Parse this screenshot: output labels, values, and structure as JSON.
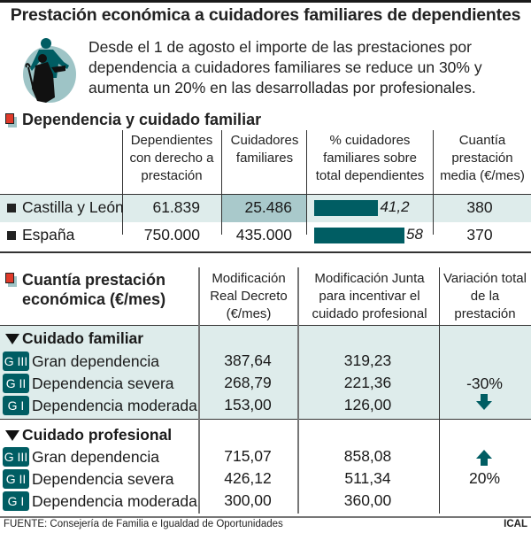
{
  "title": "Prestación económica a cuidadores familiares de dependientes",
  "intro": "Desde el 1 de agosto el importe de las prestaciones por dependencia a cuidadores familiares se reduce un 30% y aumenta un 20% en las desarrolladas por profesionales.",
  "icon": "caregiver-wheelchair-icon",
  "colors": {
    "accent": "#005d63",
    "band": "#deeceb",
    "highlight": "#a9c9cb",
    "marker": "#e03a2a"
  },
  "section1": {
    "heading": "Dependencia y cuidado familiar",
    "columns": [
      "Dependientes con derecho a prestación",
      "Cuidadores familiares",
      "% cuidadores familiares sobre total dependientes",
      "Cuantía prestación media (€/mes)"
    ],
    "rows": [
      {
        "name": "Castilla y León",
        "dependientes": "61.839",
        "cuidadores": "25.486",
        "pct_label": "41,2",
        "cuantia": "380"
      },
      {
        "name": "España",
        "dependientes": "750.000",
        "cuidadores": "435.000",
        "pct_label": "58",
        "cuantia": "370"
      }
    ]
  },
  "section2": {
    "heading_line1": "Cuantía prestación",
    "heading_line2": "económica (€/mes)",
    "columns": [
      "Modificación Real Decreto (€/mes)",
      "Modificación Junta para incentivar el cuidado profesional",
      "Variación total de la prestación"
    ],
    "groups": [
      {
        "name": "Cuidado familiar",
        "variation": "-30%",
        "direction": "down",
        "items": [
          {
            "badge": "G III",
            "label": "Gran dependencia",
            "real_decreto": "387,64",
            "junta": "319,23"
          },
          {
            "badge": "G II",
            "label": "Dependencia severa",
            "real_decreto": "268,79",
            "junta": "221,36"
          },
          {
            "badge": "G I",
            "label": "Dependencia moderada",
            "real_decreto": "153,00",
            "junta": "126,00"
          }
        ]
      },
      {
        "name": "Cuidado profesional",
        "variation": "20%",
        "direction": "up",
        "items": [
          {
            "badge": "G III",
            "label": "Gran dependencia",
            "real_decreto": "715,07",
            "junta": "858,08"
          },
          {
            "badge": "G II",
            "label": "Dependencia severa",
            "real_decreto": "426,12",
            "junta": "511,34"
          },
          {
            "badge": "G I",
            "label": "Dependencia moderada",
            "real_decreto": "300,00",
            "junta": "360,00"
          }
        ]
      }
    ]
  },
  "footer": "FUENTE: Consejería de Familia e Igualdad de Oportunidades",
  "credit": "ICAL",
  "chart_data": {
    "type": "bar",
    "title": "% cuidadores familiares sobre total dependientes",
    "categories": [
      "Castilla y León",
      "España"
    ],
    "values": [
      41.2,
      58
    ],
    "xlabel": "",
    "ylabel": "%",
    "ylim": [
      0,
      60
    ],
    "orientation": "horizontal"
  }
}
